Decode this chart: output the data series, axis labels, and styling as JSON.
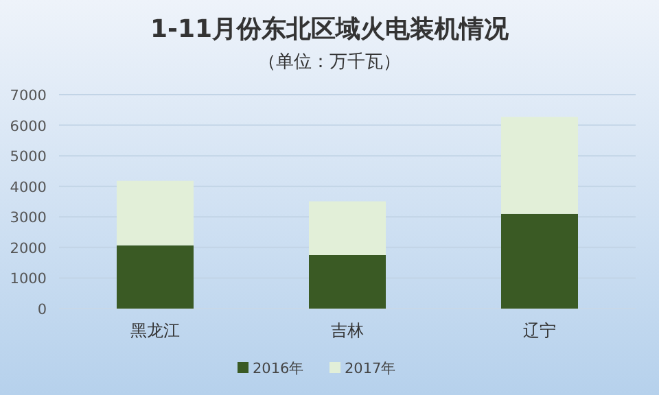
{
  "chart_data": {
    "type": "bar",
    "title": "1-11月份东北区域火电装机情况",
    "subtitle": "（单位：万千瓦）",
    "categories": [
      "黑龙江",
      "吉林",
      "辽宁"
    ],
    "stacked": true,
    "series": [
      {
        "name": "2016年",
        "color": "#3a5a24",
        "values": [
          2070,
          1750,
          3100
        ]
      },
      {
        "name": "2017年",
        "color": "#e2efd8",
        "values": [
          2110,
          1760,
          3170
        ]
      }
    ],
    "ylim": [
      0,
      7000
    ],
    "yticks": [
      0,
      1000,
      2000,
      3000,
      4000,
      5000,
      6000,
      7000
    ],
    "grid": "y",
    "legend": "bottom"
  }
}
